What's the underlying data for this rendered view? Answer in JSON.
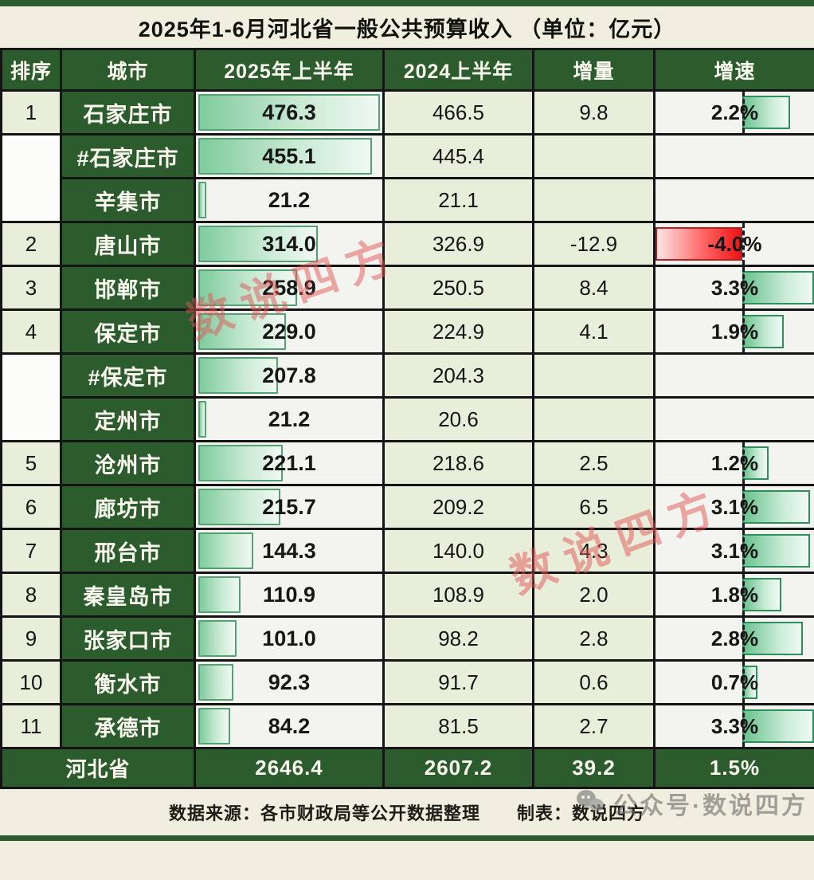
{
  "title": "2025年1-6月河北省一般公共预算收入 （单位：亿元）",
  "header": {
    "rank": "排序",
    "city": "城市",
    "y2025": "2025年上半年",
    "y2024": "2024上半年",
    "delta": "增量",
    "growth": "增速"
  },
  "rows": [
    {
      "rank": "1",
      "rank_span": 1,
      "city": "石家庄市",
      "y2025": "476.3",
      "y2024": "466.5",
      "delta": "9.8",
      "growth": "2.2%",
      "bar2025": 476.3,
      "growth_val": 2.2
    },
    {
      "rank": "",
      "rank_span": 2,
      "city": "#石家庄市",
      "y2025": "455.1",
      "y2024": "445.4",
      "delta": "",
      "growth": "",
      "bar2025": 455.1,
      "growth_val": null
    },
    {
      "rank": null,
      "rank_span": 0,
      "city": "辛集市",
      "y2025": "21.2",
      "y2024": "21.1",
      "delta": "",
      "growth": "",
      "bar2025": 21.2,
      "growth_val": null
    },
    {
      "rank": "2",
      "rank_span": 1,
      "city": "唐山市",
      "y2025": "314.0",
      "y2024": "326.9",
      "delta": "-12.9",
      "growth": "-4.0%",
      "bar2025": 314.0,
      "growth_val": -4.0
    },
    {
      "rank": "3",
      "rank_span": 1,
      "city": "邯郸市",
      "y2025": "258.9",
      "y2024": "250.5",
      "delta": "8.4",
      "growth": "3.3%",
      "bar2025": 258.9,
      "growth_val": 3.3
    },
    {
      "rank": "4",
      "rank_span": 1,
      "city": "保定市",
      "y2025": "229.0",
      "y2024": "224.9",
      "delta": "4.1",
      "growth": "1.9%",
      "bar2025": 229.0,
      "growth_val": 1.9
    },
    {
      "rank": "",
      "rank_span": 2,
      "city": "#保定市",
      "y2025": "207.8",
      "y2024": "204.3",
      "delta": "",
      "growth": "",
      "bar2025": 207.8,
      "growth_val": null
    },
    {
      "rank": null,
      "rank_span": 0,
      "city": "定州市",
      "y2025": "21.2",
      "y2024": "20.6",
      "delta": "",
      "growth": "",
      "bar2025": 21.2,
      "growth_val": null
    },
    {
      "rank": "5",
      "rank_span": 1,
      "city": "沧州市",
      "y2025": "221.1",
      "y2024": "218.6",
      "delta": "2.5",
      "growth": "1.2%",
      "bar2025": 221.1,
      "growth_val": 1.2
    },
    {
      "rank": "6",
      "rank_span": 1,
      "city": "廊坊市",
      "y2025": "215.7",
      "y2024": "209.2",
      "delta": "6.5",
      "growth": "3.1%",
      "bar2025": 215.7,
      "growth_val": 3.1
    },
    {
      "rank": "7",
      "rank_span": 1,
      "city": "邢台市",
      "y2025": "144.3",
      "y2024": "140.0",
      "delta": "4.3",
      "growth": "3.1%",
      "bar2025": 144.3,
      "growth_val": 3.1
    },
    {
      "rank": "8",
      "rank_span": 1,
      "city": "秦皇岛市",
      "y2025": "110.9",
      "y2024": "108.9",
      "delta": "2.0",
      "growth": "1.8%",
      "bar2025": 110.9,
      "growth_val": 1.8
    },
    {
      "rank": "9",
      "rank_span": 1,
      "city": "张家口市",
      "y2025": "101.0",
      "y2024": "98.2",
      "delta": "2.8",
      "growth": "2.8%",
      "bar2025": 101.0,
      "growth_val": 2.8
    },
    {
      "rank": "10",
      "rank_span": 1,
      "city": "衡水市",
      "y2025": "92.3",
      "y2024": "91.7",
      "delta": "0.6",
      "growth": "0.7%",
      "bar2025": 92.3,
      "growth_val": 0.7
    },
    {
      "rank": "11",
      "rank_span": 1,
      "city": "承德市",
      "y2025": "84.2",
      "y2024": "81.5",
      "delta": "2.7",
      "growth": "3.3%",
      "bar2025": 84.2,
      "growth_val": 3.3
    }
  ],
  "total": {
    "label": "河北省",
    "y2025": "2646.4",
    "y2024": "2607.2",
    "delta": "39.2",
    "growth": "1.5%"
  },
  "footer": {
    "source": "数据来源：各市财政局等公开数据整理",
    "maker": "制表：数说四方",
    "watermark": "公众号·数说四方"
  },
  "watermarks": [
    "数说四方",
    "数说四方"
  ],
  "scales": {
    "bar_max": 476.3,
    "growth_neg_range": 4.0,
    "growth_pos_range": 3.3
  },
  "colors": {
    "header_green": "#2c5b2e",
    "title_cream": "#f0efdf",
    "cell_cream": "#e9eeda",
    "bar_green": "#7fcb9e",
    "bar_red": "#ee1313",
    "watermark_red": "#e25454"
  },
  "chart_data": {
    "type": "table",
    "title": "2025年1-6月河北省一般公共预算收入（单位：亿元）",
    "columns": [
      "排序",
      "城市",
      "2025年上半年",
      "2024上半年",
      "增量",
      "增速"
    ],
    "rows": [
      [
        "1",
        "石家庄市",
        476.3,
        466.5,
        9.8,
        "2.2%"
      ],
      [
        "",
        "#石家庄市",
        455.1,
        445.4,
        null,
        null
      ],
      [
        "",
        "辛集市",
        21.2,
        21.1,
        null,
        null
      ],
      [
        "2",
        "唐山市",
        314.0,
        326.9,
        -12.9,
        "-4.0%"
      ],
      [
        "3",
        "邯郸市",
        258.9,
        250.5,
        8.4,
        "3.3%"
      ],
      [
        "4",
        "保定市",
        229.0,
        224.9,
        4.1,
        "1.9%"
      ],
      [
        "",
        "#保定市",
        207.8,
        204.3,
        null,
        null
      ],
      [
        "",
        "定州市",
        21.2,
        20.6,
        null,
        null
      ],
      [
        "5",
        "沧州市",
        221.1,
        218.6,
        2.5,
        "1.2%"
      ],
      [
        "6",
        "廊坊市",
        215.7,
        209.2,
        6.5,
        "3.1%"
      ],
      [
        "7",
        "邢台市",
        144.3,
        140.0,
        4.3,
        "3.1%"
      ],
      [
        "8",
        "秦皇岛市",
        110.9,
        108.9,
        2.0,
        "1.8%"
      ],
      [
        "9",
        "张家口市",
        101.0,
        98.2,
        2.8,
        "2.8%"
      ],
      [
        "10",
        "衡水市",
        92.3,
        91.7,
        0.6,
        "0.7%"
      ],
      [
        "11",
        "承德市",
        84.2,
        81.5,
        2.7,
        "3.3%"
      ]
    ],
    "total_row": [
      "",
      "河北省",
      2646.4,
      2607.2,
      39.2,
      "1.5%"
    ],
    "databar_2025": {
      "min": 0,
      "max": 476.3
    },
    "databar_growth_axis": [
      -4.0,
      3.3
    ],
    "source_note": "数据来源：各市财政局等公开数据整理",
    "made_by": "制表：数说四方"
  }
}
